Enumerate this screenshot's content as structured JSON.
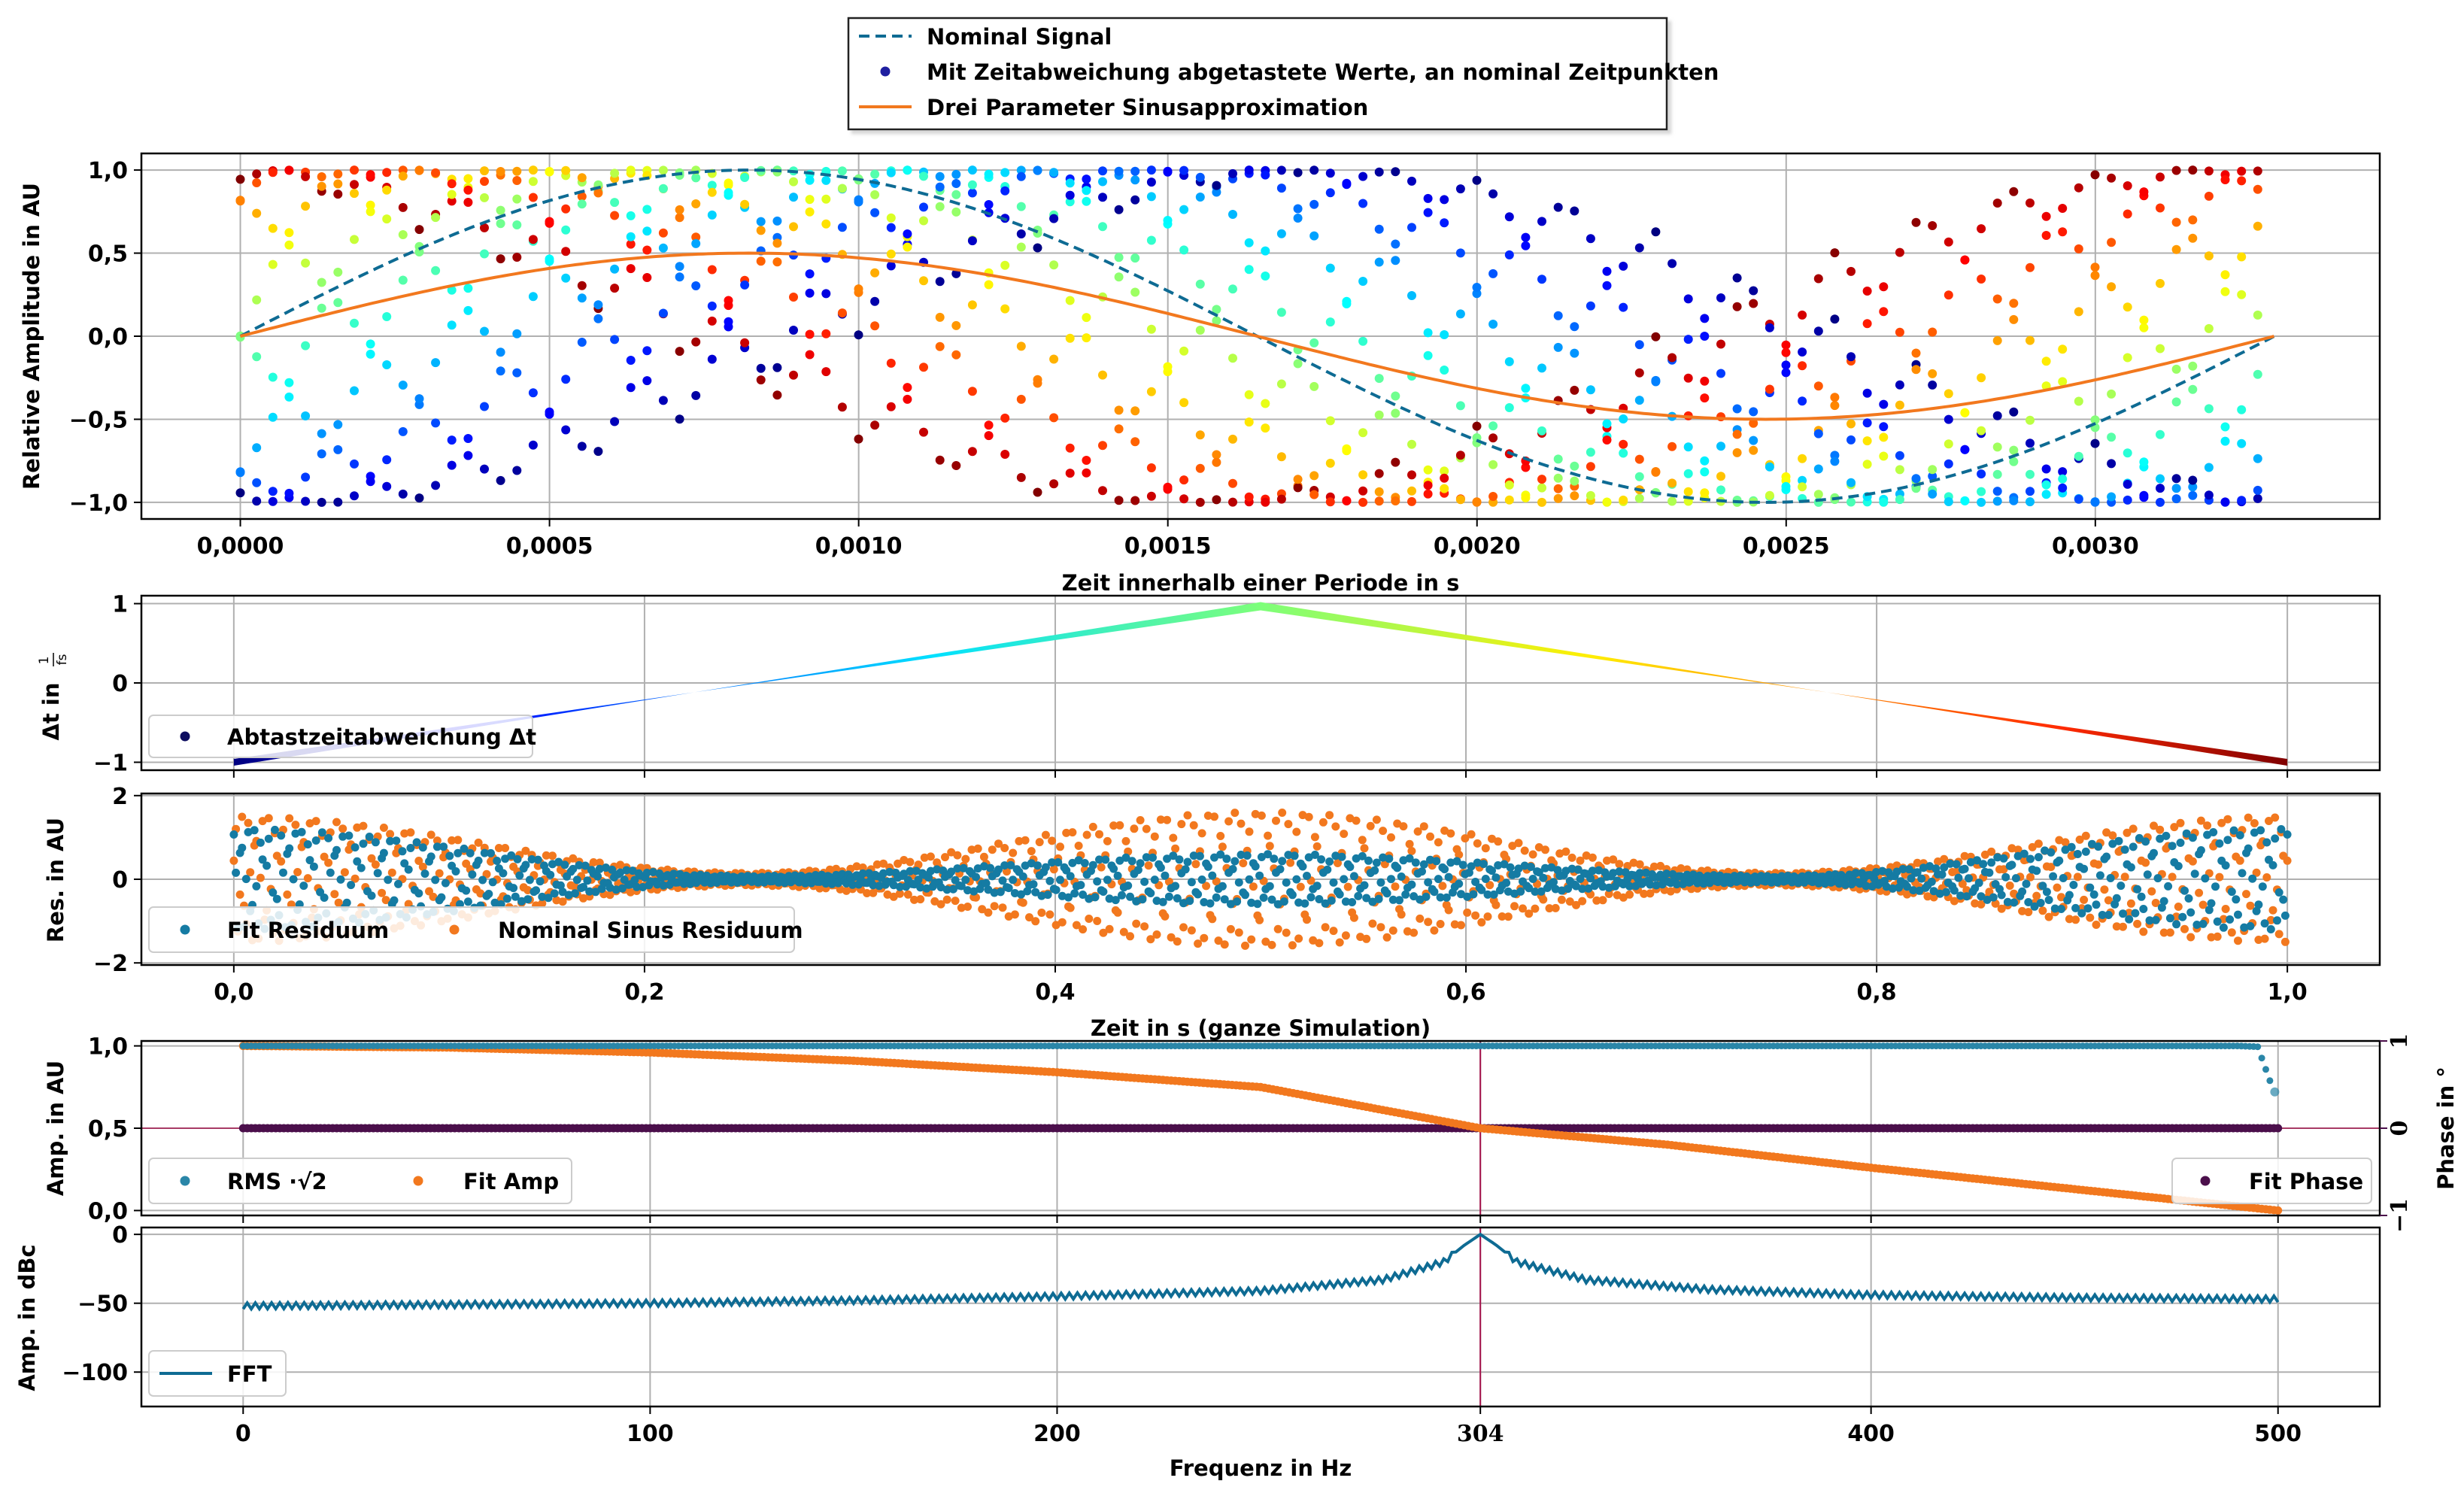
{
  "colors": {
    "nominal": "#0e6b93",
    "fit": "#f2781e",
    "residual_fit": "#157ba3",
    "residual_nominal": "#f2781e",
    "rms": "#2a86a8",
    "fit_amp": "#f2781e",
    "phase": "#4b0f4b",
    "fft": "#0e6b93",
    "marker": "#a5134c",
    "grid": "#b0b0b0"
  },
  "legend_top": {
    "nominal": "Nominal Signal",
    "samples": "Mit Zeitabweichung abgetastete Werte, an nominal Zeitpunkten",
    "fit": "Drei Parameter Sinusapproximation"
  },
  "panels": {
    "p1": {
      "ylabel": "Relative Amplitude in AU",
      "xlabel": "Zeit innerhalb einer Periode in s",
      "xticks": [
        "0,0000",
        "0,0005",
        "0,0010",
        "0,0015",
        "0,0020",
        "0,0025",
        "0,0030"
      ],
      "yticks": [
        "1,0",
        "0,5",
        "0,0",
        "−0,5",
        "−1,0"
      ]
    },
    "p2": {
      "ylabel_main": "Δt in",
      "ylabel_frac_num": "1",
      "ylabel_frac_den": "fs",
      "yticks": [
        "1",
        "0",
        "−1"
      ],
      "legend": "Abtastzeitabweichung Δt"
    },
    "p3": {
      "ylabel": "Res. in AU",
      "xlabel": "Zeit in s (ganze Simulation)",
      "xticks": [
        "0,0",
        "0,2",
        "0,4",
        "0,6",
        "0,8",
        "1,0"
      ],
      "yticks": [
        "2",
        "0",
        "−2"
      ],
      "legend_fit": "Fit Residuum",
      "legend_nominal": "Nominal Sinus Residuum"
    },
    "p4": {
      "ylabel": "Amp. in AU",
      "ylabel_right": "Phase in °",
      "yticks": [
        "1,0",
        "0,5",
        "0,0"
      ],
      "yticks_right": [
        "1",
        "0",
        "−1"
      ],
      "legend_rms": "RMS ·√2",
      "legend_amp": "Fit Amp",
      "legend_phase": "Fit Phase"
    },
    "p5": {
      "ylabel": "Amp. in dBc",
      "xlabel": "Frequenz in Hz",
      "xticks": [
        "0",
        "100",
        "200",
        "304",
        "400",
        "500"
      ],
      "yticks": [
        "0",
        "−50",
        "−100"
      ],
      "legend": "FFT"
    }
  },
  "chart_data": [
    {
      "type": "scatter",
      "title": "",
      "xlabel": "Zeit innerhalb einer Periode in s",
      "ylabel": "Relative Amplitude in AU",
      "xlim": [
        -0.00016,
        0.00346
      ],
      "ylim": [
        -1.1,
        1.1
      ],
      "grid": true,
      "legend_placement": "above",
      "signal_frequency_hz": 304,
      "period_s": 0.003289,
      "series": [
        {
          "name": "Nominal Signal",
          "kind": "dashed-line",
          "function": "sin(2π·304·t)"
        },
        {
          "name": "Mit Zeitabweichung abgetastete Werte, an nominal Zeitpunkten",
          "kind": "scatter",
          "colormap": "jet by sample deviation"
        },
        {
          "name": "Drei Parameter Sinusapproximation",
          "kind": "line",
          "amplitude": 0.5,
          "function": "0.5·sin(2π·304·t)"
        }
      ]
    },
    {
      "type": "scatter",
      "xlim": [
        -0.045,
        1.045
      ],
      "ylim": [
        -1.1,
        1.1
      ],
      "ylabel": "Δt in 1/fs",
      "grid": true,
      "legend_placement": "lower left",
      "series": [
        {
          "name": "Abtastzeitabweichung Δt",
          "x": [
            0.0,
            0.5,
            1.0
          ],
          "y": [
            -1.0,
            1.0,
            -1.0
          ],
          "shape": "triangle",
          "colormap": "jet"
        }
      ]
    },
    {
      "type": "scatter",
      "xlabel": "Zeit in s (ganze Simulation)",
      "ylabel": "Res. in AU",
      "xlim": [
        -0.045,
        1.045
      ],
      "ylim": [
        -2.05,
        2.05
      ],
      "grid": true,
      "legend_placement": "lower left",
      "series": [
        {
          "name": "Fit Residuum",
          "envelope_x": [
            0.0,
            0.25,
            0.5,
            0.75,
            1.0
          ],
          "envelope_amplitude": [
            1.2,
            0.08,
            0.6,
            0.08,
            1.2
          ]
        },
        {
          "name": "Nominal Sinus Residuum",
          "envelope_x": [
            0.0,
            0.25,
            0.5,
            0.75,
            1.0
          ],
          "envelope_amplitude": [
            1.5,
            0.15,
            1.6,
            0.15,
            1.5
          ]
        }
      ]
    },
    {
      "type": "scatter",
      "xlim": [
        -25,
        525
      ],
      "ylim": [
        -0.03,
        1.03
      ],
      "y2lim": [
        -1,
        1
      ],
      "grid": true,
      "marker_x": 304,
      "legend_placement": "lower left / lower right",
      "series": [
        {
          "name": "RMS ·√2",
          "x": [
            0,
            100,
            200,
            300,
            400,
            490,
            495,
            499,
            500
          ],
          "y": [
            1.0,
            1.0,
            1.0,
            1.0,
            1.0,
            1.0,
            0.995,
            0.72,
            0.72
          ]
        },
        {
          "name": "Fit Amp",
          "x": [
            0,
            50,
            100,
            150,
            200,
            250,
            304,
            350,
            400,
            450,
            500
          ],
          "y": [
            1.0,
            0.99,
            0.96,
            0.91,
            0.84,
            0.75,
            0.5,
            0.4,
            0.26,
            0.13,
            0.0
          ]
        },
        {
          "name": "Fit Phase",
          "axis": "right",
          "x": [
            0,
            500
          ],
          "y": [
            0.0,
            0.0
          ]
        }
      ]
    },
    {
      "type": "line",
      "xlabel": "Frequenz in Hz",
      "ylabel": "Amp. in dBc",
      "xlim": [
        -25,
        525
      ],
      "ylim": [
        -125,
        5
      ],
      "grid": true,
      "marker_x": 304,
      "legend_placement": "lower left",
      "series": [
        {
          "name": "FFT",
          "x": [
            0,
            50,
            100,
            150,
            200,
            250,
            280,
            295,
            300,
            304,
            308,
            313,
            330,
            360,
            400,
            450,
            500
          ],
          "y": [
            -52,
            -51,
            -50,
            -48,
            -45,
            -41,
            -33,
            -20,
            -8,
            0,
            -8,
            -20,
            -33,
            -40,
            -44,
            -46,
            -47
          ]
        }
      ]
    }
  ]
}
